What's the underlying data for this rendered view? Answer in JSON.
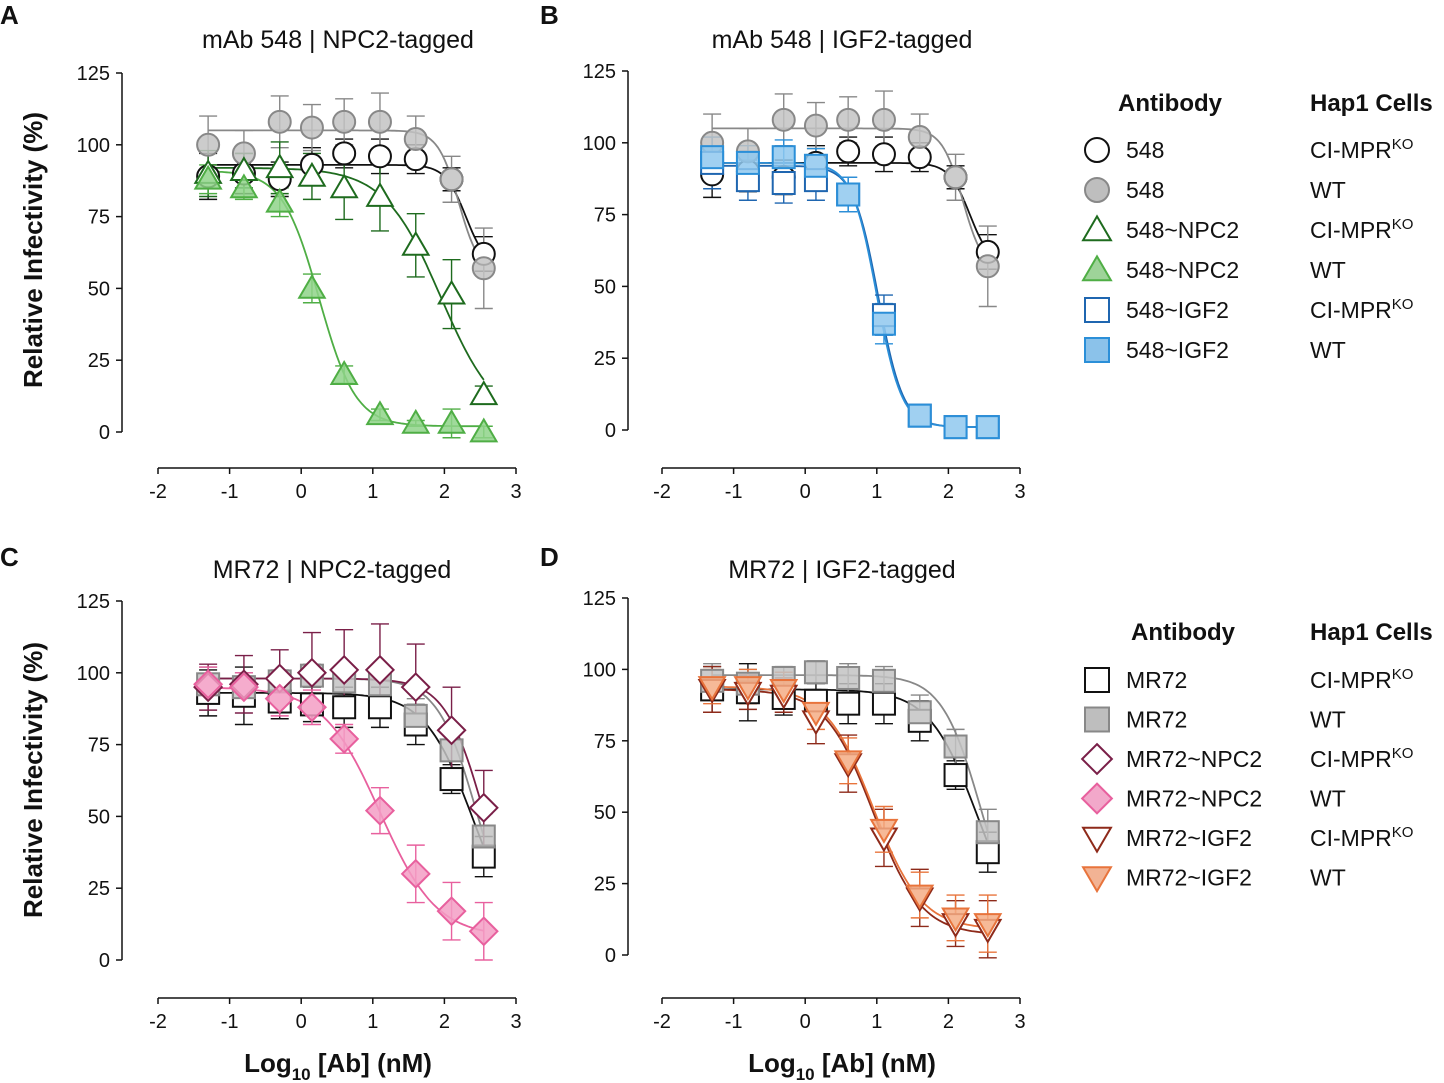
{
  "figure": {
    "panel_letters": [
      "A",
      "B",
      "C",
      "D"
    ],
    "ylabel": "Relative Infectivity (%)",
    "xlabel_main": "Log",
    "xlabel_sub": "10",
    "xlabel_rest": " [Ab] (nM)"
  },
  "legends": [
    {
      "header_antibody": "Antibody",
      "header_cells": "Hap1 Cells",
      "rows": [
        {
          "antibody": "548",
          "cells_main": "CI-MPR",
          "cells_sup": "KO",
          "marker": "circle",
          "filled": false,
          "color": "#111111"
        },
        {
          "antibody": "548",
          "cells_main": "WT",
          "cells_sup": "",
          "marker": "circle",
          "filled": true,
          "color": "#888888"
        },
        {
          "antibody": "548~NPC2",
          "cells_main": "CI-MPR",
          "cells_sup": "KO",
          "marker": "triangle-up",
          "filled": false,
          "color": "#1e6b1e"
        },
        {
          "antibody": "548~NPC2",
          "cells_main": "WT",
          "cells_sup": "",
          "marker": "triangle-up",
          "filled": true,
          "color": "#4fae45"
        },
        {
          "antibody": "548~IGF2",
          "cells_main": "CI-MPR",
          "cells_sup": "KO",
          "marker": "square",
          "filled": false,
          "color": "#1f66b0"
        },
        {
          "antibody": "548~IGF2",
          "cells_main": "WT",
          "cells_sup": "",
          "marker": "square",
          "filled": true,
          "color": "#2b8fd8"
        }
      ]
    },
    {
      "header_antibody": "Antibody",
      "header_cells": "Hap1 Cells",
      "rows": [
        {
          "antibody": "MR72",
          "cells_main": "CI-MPR",
          "cells_sup": "KO",
          "marker": "square",
          "filled": false,
          "color": "#111111"
        },
        {
          "antibody": "MR72",
          "cells_main": "WT",
          "cells_sup": "",
          "marker": "square",
          "filled": true,
          "color": "#888888"
        },
        {
          "antibody": "MR72~NPC2",
          "cells_main": "CI-MPR",
          "cells_sup": "KO",
          "marker": "diamond",
          "filled": false,
          "color": "#7a1f48"
        },
        {
          "antibody": "MR72~NPC2",
          "cells_main": "WT",
          "cells_sup": "",
          "marker": "diamond",
          "filled": true,
          "color": "#e8609e"
        },
        {
          "antibody": "MR72~IGF2",
          "cells_main": "CI-MPR",
          "cells_sup": "KO",
          "marker": "triangle-down",
          "filled": false,
          "color": "#8e2a1a"
        },
        {
          "antibody": "MR72~IGF2",
          "cells_main": "WT",
          "cells_sup": "",
          "marker": "triangle-down",
          "filled": true,
          "color": "#e8743c"
        }
      ]
    }
  ],
  "chart_data": [
    {
      "type": "scatter",
      "panel": "A",
      "title": "mAb 548 | NPC2-tagged",
      "xlabel": "Log10 [Ab] (nM)",
      "ylabel": "Relative Infectivity (%)",
      "xlim": [
        -2,
        3
      ],
      "ylim": [
        0,
        125
      ],
      "xticks": [
        -2,
        -1,
        0,
        1,
        2,
        3
      ],
      "yticks": [
        0,
        25,
        50,
        75,
        100,
        125
      ],
      "series": [
        {
          "name": "548 CI-MPR KO",
          "marker": "circle",
          "filled": false,
          "color": "#111111",
          "fill": "#ffffff",
          "x": [
            -1.3,
            -0.8,
            -0.3,
            0.15,
            0.6,
            1.1,
            1.6,
            2.1,
            2.55
          ],
          "y": [
            89,
            90,
            88,
            93,
            97,
            96,
            95,
            88,
            62
          ],
          "err": [
            8,
            7,
            6,
            6,
            5,
            6,
            5,
            4,
            6
          ],
          "fit": {
            "top": 93,
            "bottom": 57,
            "log_ic50": 2.3,
            "hill": 3
          }
        },
        {
          "name": "548 WT",
          "marker": "circle",
          "filled": true,
          "color": "#888888",
          "fill": "#c3c3c3",
          "x": [
            -1.3,
            -0.8,
            -0.3,
            0.15,
            0.6,
            1.1,
            1.6,
            2.1,
            2.55
          ],
          "y": [
            100,
            97,
            108,
            106,
            108,
            108,
            102,
            88,
            57
          ],
          "err": [
            10,
            8,
            9,
            8,
            8,
            10,
            8,
            8,
            14
          ],
          "fit": {
            "top": 105,
            "bottom": 55,
            "log_ic50": 2.2,
            "hill": 3
          }
        },
        {
          "name": "548~NPC2 CI-MPR KO",
          "marker": "triangle-up",
          "filled": false,
          "color": "#1e6b1e",
          "fill": "#ffffff",
          "x": [
            -1.3,
            -0.8,
            -0.3,
            0.15,
            0.6,
            1.1,
            1.6,
            2.1,
            2.55
          ],
          "y": [
            90,
            91,
            92,
            89,
            85,
            82,
            65,
            48,
            13
          ],
          "err": [
            8,
            6,
            9,
            8,
            11,
            12,
            11,
            12,
            3
          ],
          "fit": {
            "top": 92,
            "bottom": 2,
            "log_ic50": 1.95,
            "hill": 1.1
          }
        },
        {
          "name": "548~NPC2 WT",
          "marker": "triangle-up",
          "filled": true,
          "color": "#4fae45",
          "fill": "#8fd48a",
          "x": [
            -1.3,
            -0.8,
            -0.3,
            0.15,
            0.6,
            1.1,
            1.6,
            2.1,
            2.55
          ],
          "y": [
            88,
            85,
            80,
            50,
            20,
            6,
            3,
            3,
            0
          ],
          "err": [
            5,
            4,
            5,
            5,
            3,
            2,
            1,
            5,
            2
          ],
          "fit": {
            "top": 91,
            "bottom": 2,
            "log_ic50": 0.25,
            "hill": 1.7
          }
        }
      ]
    },
    {
      "type": "scatter",
      "panel": "B",
      "title": "mAb 548 | IGF2-tagged",
      "xlabel": "Log10 [Ab] (nM)",
      "ylabel": "Relative Infectivity (%)",
      "xlim": [
        -2,
        3
      ],
      "ylim": [
        0,
        125
      ],
      "xticks": [
        -2,
        -1,
        0,
        1,
        2,
        3
      ],
      "yticks": [
        0,
        25,
        50,
        75,
        100,
        125
      ],
      "series": [
        {
          "name": "548 CI-MPR KO",
          "marker": "circle",
          "filled": false,
          "color": "#111111",
          "fill": "#ffffff",
          "x": [
            -1.3,
            -0.8,
            -0.3,
            0.15,
            0.6,
            1.1,
            1.6,
            2.1,
            2.55
          ],
          "y": [
            89,
            90,
            88,
            93,
            97,
            96,
            95,
            88,
            62
          ],
          "err": [
            8,
            7,
            6,
            6,
            5,
            6,
            5,
            4,
            6
          ],
          "fit": {
            "top": 93,
            "bottom": 57,
            "log_ic50": 2.3,
            "hill": 3
          }
        },
        {
          "name": "548 WT",
          "marker": "circle",
          "filled": true,
          "color": "#888888",
          "fill": "#c3c3c3",
          "x": [
            -1.3,
            -0.8,
            -0.3,
            0.15,
            0.6,
            1.1,
            1.6,
            2.1,
            2.55
          ],
          "y": [
            100,
            97,
            108,
            106,
            108,
            108,
            102,
            88,
            57
          ],
          "err": [
            10,
            8,
            9,
            8,
            8,
            10,
            8,
            8,
            14
          ],
          "fit": {
            "top": 105,
            "bottom": 55,
            "log_ic50": 2.2,
            "hill": 3
          }
        },
        {
          "name": "548~IGF2 CI-MPR KO",
          "marker": "square",
          "filled": false,
          "color": "#1f66b0",
          "fill": "#ffffff",
          "x": [
            -1.3,
            -0.8,
            -0.3,
            0.15,
            0.6,
            1.1,
            1.6,
            2.1,
            2.55
          ],
          "y": [
            93,
            87,
            86,
            87,
            82,
            40,
            5,
            1,
            1
          ],
          "err": [
            9,
            7,
            7,
            7,
            6,
            7,
            3,
            1,
            1
          ],
          "fit": {
            "top": 92,
            "bottom": 1,
            "log_ic50": 1.02,
            "hill": 2.5
          }
        },
        {
          "name": "548~IGF2 WT",
          "marker": "square",
          "filled": true,
          "color": "#2b8fd8",
          "fill": "#8fc8ef",
          "x": [
            -1.3,
            -0.8,
            -0.3,
            0.15,
            0.6,
            1.1,
            1.6,
            2.1,
            2.55
          ],
          "y": [
            95,
            93,
            95,
            92,
            82,
            37,
            5,
            1,
            1
          ],
          "err": [
            7,
            6,
            6,
            6,
            6,
            7,
            3,
            1,
            1
          ],
          "fit": {
            "top": 93,
            "bottom": 1,
            "log_ic50": 1.0,
            "hill": 2.5
          }
        }
      ]
    },
    {
      "type": "scatter",
      "panel": "C",
      "title": "MR72 | NPC2-tagged",
      "xlabel": "Log10 [Ab] (nM)",
      "ylabel": "Relative Infectivity (%)",
      "xlim": [
        -2,
        3
      ],
      "ylim": [
        0,
        125
      ],
      "xticks": [
        -2,
        -1,
        0,
        1,
        2,
        3
      ],
      "yticks": [
        0,
        25,
        50,
        75,
        100,
        125
      ],
      "series": [
        {
          "name": "MR72 CI-MPR KO",
          "marker": "square",
          "filled": false,
          "color": "#111111",
          "fill": "#ffffff",
          "x": [
            -1.3,
            -0.8,
            -0.3,
            0.15,
            0.6,
            1.1,
            1.6,
            2.1,
            2.55
          ],
          "y": [
            93,
            92,
            90,
            89,
            88,
            88,
            82,
            63,
            36
          ],
          "err": [
            8,
            10,
            6,
            6,
            7,
            7,
            7,
            5,
            7
          ],
          "fit": {
            "top": 93,
            "bottom": 5,
            "log_ic50": 2.4,
            "hill": 1.3
          }
        },
        {
          "name": "MR72 WT",
          "marker": "square",
          "filled": true,
          "color": "#888888",
          "fill": "#c3c3c3",
          "x": [
            -1.3,
            -0.8,
            -0.3,
            0.15,
            0.6,
            1.1,
            1.6,
            2.1,
            2.55
          ],
          "y": [
            96,
            95,
            97,
            99,
            97,
            96,
            85,
            73,
            43
          ],
          "err": [
            6,
            5,
            4,
            4,
            5,
            5,
            6,
            6,
            8
          ],
          "fit": {
            "top": 98,
            "bottom": 5,
            "log_ic50": 2.45,
            "hill": 1.6
          }
        },
        {
          "name": "MR72~NPC2 CI-MPR KO",
          "marker": "diamond",
          "filled": false,
          "color": "#7a1f48",
          "fill": "#ffffff",
          "x": [
            -1.3,
            -0.8,
            -0.3,
            0.15,
            0.6,
            1.1,
            1.6,
            2.1,
            2.55
          ],
          "y": [
            95,
            96,
            98,
            100,
            101,
            101,
            95,
            80,
            53
          ],
          "err": [
            8,
            10,
            10,
            14,
            14,
            16,
            15,
            15,
            13
          ],
          "fit": {
            "top": 98,
            "bottom": 5,
            "log_ic50": 2.55,
            "hill": 1.6
          }
        },
        {
          "name": "MR72~NPC2 WT",
          "marker": "diamond",
          "filled": true,
          "color": "#e8609e",
          "fill": "#f39ec4",
          "x": [
            -1.3,
            -0.8,
            -0.3,
            0.15,
            0.6,
            1.1,
            1.6,
            2.1,
            2.55
          ],
          "y": [
            96,
            95,
            91,
            88,
            77,
            52,
            30,
            17,
            10
          ],
          "err": [
            6,
            5,
            6,
            6,
            5,
            8,
            10,
            10,
            10
          ],
          "fit": {
            "top": 95,
            "bottom": 8,
            "log_ic50": 1.1,
            "hill": 1.1
          }
        }
      ]
    },
    {
      "type": "scatter",
      "panel": "D",
      "title": "MR72 | IGF2-tagged",
      "xlabel": "Log10 [Ab] (nM)",
      "ylabel": "Relative Infectivity (%)",
      "xlim": [
        -2,
        3
      ],
      "ylim": [
        0,
        125
      ],
      "xticks": [
        -2,
        -1,
        0,
        1,
        2,
        3
      ],
      "yticks": [
        0,
        25,
        50,
        75,
        100,
        125
      ],
      "series": [
        {
          "name": "MR72 CI-MPR KO",
          "marker": "square",
          "filled": false,
          "color": "#111111",
          "fill": "#ffffff",
          "x": [
            -1.3,
            -0.8,
            -0.3,
            0.15,
            0.6,
            1.1,
            1.6,
            2.1,
            2.55
          ],
          "y": [
            93,
            92,
            90,
            89,
            88,
            88,
            82,
            63,
            36
          ],
          "err": [
            8,
            10,
            6,
            6,
            7,
            7,
            7,
            5,
            7
          ],
          "fit": {
            "top": 93,
            "bottom": 5,
            "log_ic50": 2.4,
            "hill": 1.3
          }
        },
        {
          "name": "MR72 WT",
          "marker": "square",
          "filled": true,
          "color": "#888888",
          "fill": "#c3c3c3",
          "x": [
            -1.3,
            -0.8,
            -0.3,
            0.15,
            0.6,
            1.1,
            1.6,
            2.1,
            2.55
          ],
          "y": [
            96,
            95,
            97,
            99,
            97,
            96,
            85,
            73,
            43
          ],
          "err": [
            6,
            5,
            4,
            4,
            5,
            5,
            6,
            6,
            8
          ],
          "fit": {
            "top": 98,
            "bottom": 5,
            "log_ic50": 2.45,
            "hill": 1.6
          }
        },
        {
          "name": "MR72~IGF2 CI-MPR KO",
          "marker": "triangle-down",
          "filled": false,
          "color": "#8e2a1a",
          "fill": "#ffffff",
          "x": [
            -1.3,
            -0.8,
            -0.3,
            0.15,
            0.6,
            1.1,
            1.6,
            2.1,
            2.55
          ],
          "y": [
            93,
            92,
            91,
            82,
            67,
            41,
            20,
            11,
            9
          ],
          "err": [
            8,
            6,
            6,
            8,
            10,
            10,
            10,
            8,
            10
          ],
          "fit": {
            "top": 93,
            "bottom": 7,
            "log_ic50": 0.95,
            "hill": 1.3
          }
        },
        {
          "name": "MR72~IGF2 WT",
          "marker": "triangle-down",
          "filled": true,
          "color": "#e8743c",
          "fill": "#f5ad85",
          "x": [
            -1.3,
            -0.8,
            -0.3,
            0.15,
            0.6,
            1.1,
            1.6,
            2.1,
            2.55
          ],
          "y": [
            94,
            94,
            93,
            85,
            68,
            44,
            21,
            13,
            11
          ],
          "err": [
            6,
            6,
            6,
            6,
            8,
            8,
            8,
            8,
            10
          ],
          "fit": {
            "top": 94,
            "bottom": 9,
            "log_ic50": 0.95,
            "hill": 1.3
          }
        }
      ]
    }
  ]
}
